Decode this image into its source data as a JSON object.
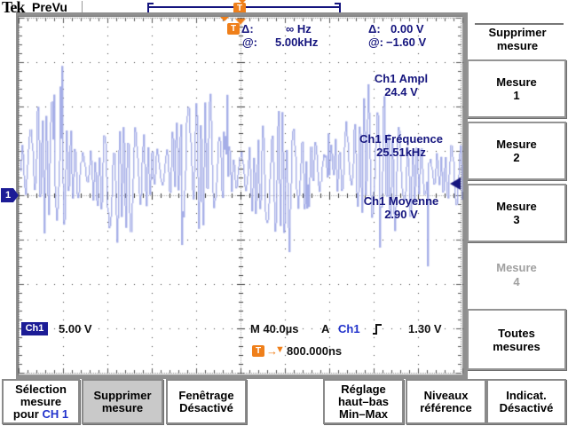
{
  "brand": {
    "logo": "Tek",
    "mode": "PreVu"
  },
  "icons": {
    "trigger_badge": "T",
    "right_arrow": "→",
    "down_triangle": "▼",
    "channel_marker": "1"
  },
  "trigger_readout": {
    "d_label1": "Δ:",
    "d_value1": "∞ Hz",
    "at_label1": "@:",
    "at_value1": "5.00kHz",
    "d_label2": "Δ:",
    "d_value2": "0.00 V",
    "at_label2": "@:",
    "at_value2": "−1.60 V"
  },
  "measurements": [
    {
      "label": "Ch1 Ampl",
      "value": "24.4 V"
    },
    {
      "label": "Ch1 Fréquence",
      "value": "25.51kHz"
    },
    {
      "label": "Ch1 Moyenne",
      "value": "2.90 V"
    }
  ],
  "channel": {
    "badge": "Ch1",
    "scale": "5.00 V"
  },
  "status": {
    "timebase": "M 40.0µs",
    "acquisition": "A",
    "trigger_source": "Ch1",
    "trigger_level": "1.30 V",
    "delay": "800.000ns"
  },
  "side_menu": {
    "title_lines": [
      "Supprimer",
      "mesure"
    ],
    "items": [
      {
        "lines": [
          "Mesure",
          "1"
        ],
        "enabled": true
      },
      {
        "lines": [
          "Mesure",
          "2"
        ],
        "enabled": true
      },
      {
        "lines": [
          "Mesure",
          "3"
        ],
        "enabled": true
      },
      {
        "lines": [
          "Mesure",
          "4"
        ],
        "enabled": false
      },
      {
        "lines": [
          "Toutes",
          "mesures"
        ],
        "enabled": true
      }
    ]
  },
  "bottom_menu": [
    {
      "lines": [
        "Sélection",
        "mesure"
      ],
      "suffix_prefix": "pour",
      "suffix_channel": "CH 1",
      "selected": false
    },
    {
      "lines": [
        "Supprimer",
        "mesure"
      ],
      "selected": true
    },
    {
      "lines": [
        "Fenêtrage",
        "Désactivé"
      ],
      "selected": false
    },
    {
      "lines": [
        "Réglage",
        "haut–bas",
        "Min–Max"
      ],
      "selected": false
    },
    {
      "lines": [
        "Niveaux",
        "référence"
      ],
      "selected": false
    },
    {
      "lines": [
        "Indicat.",
        "Désactivé"
      ],
      "selected": false
    }
  ],
  "waveform": {
    "volts_per_div": 5.0,
    "mean_v": 2.9,
    "amplitude_vpp": 24.4,
    "trace_color": "#aab2e8"
  },
  "colors": {
    "accent_orange": "#ef7f1a",
    "readout_navy": "#15157e",
    "channel_blue": "#2233cc",
    "channel_badge_navy": "#1c1c96",
    "selected_menu_gray": "#c9c9c9"
  }
}
